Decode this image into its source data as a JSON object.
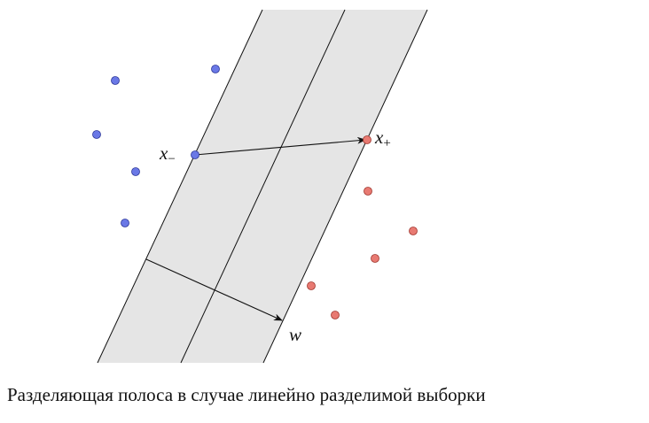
{
  "figure": {
    "labels": {
      "x_minus_base": "x",
      "x_minus_sub": "−",
      "x_plus_base": "x",
      "x_plus_sub": "+",
      "w": "w"
    },
    "colors": {
      "band_fill": "#e5e5e5",
      "line": "#111111",
      "class_negative_fill": "#6a78e6",
      "class_negative_stroke": "#2b3699",
      "class_positive_fill": "#e87a72",
      "class_positive_stroke": "#a0342c"
    }
  },
  "caption": "Разделяющая полоса в случае линейно разделимой выборки"
}
